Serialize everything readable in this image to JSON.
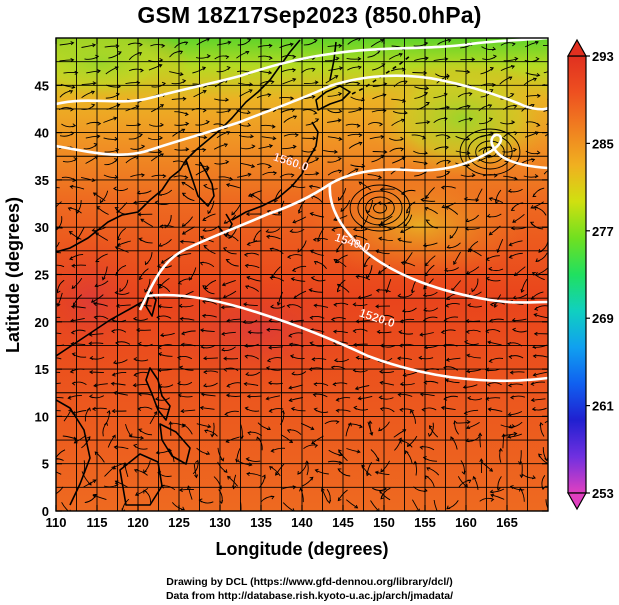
{
  "title": "GSM 18Z17Sep2023 (850.0hPa)",
  "x_axis": {
    "label": "Longitude (degrees)",
    "min": 110,
    "max": 170,
    "ticks": [
      110,
      115,
      120,
      125,
      130,
      135,
      140,
      145,
      150,
      155,
      160,
      165
    ]
  },
  "y_axis": {
    "label": "Latitude  (degrees)",
    "min": 0,
    "max": 50,
    "ticks": [
      0,
      5,
      10,
      15,
      20,
      25,
      30,
      35,
      40,
      45
    ]
  },
  "colorbar": {
    "ticks": [
      253,
      261,
      269,
      277,
      285,
      293
    ],
    "min": 253,
    "max": 293,
    "colors": [
      "#e040c0",
      "#7030e0",
      "#2020d0",
      "#1060f0",
      "#10a0f0",
      "#10d0c0",
      "#20e060",
      "#70e020",
      "#d0e010",
      "#f0b020",
      "#f08020",
      "#ee5020",
      "#e03020"
    ]
  },
  "contours": [
    {
      "label": "1560.0",
      "lon": 138.5,
      "lat": 36.5
    },
    {
      "label": "1540.0",
      "lon": 146.0,
      "lat": 28.0
    },
    {
      "label": "1520.0",
      "lon": 149.0,
      "lat": 20.0
    }
  ],
  "footer": {
    "line1": "Drawing by DCL (https://www.gfd-dennou.org/library/dcl/)",
    "line2": "Data from http://database.rish.kyoto-u.ac.jp/arch/jmadata/"
  },
  "colors": {
    "warm": "#e84a1c",
    "hot": "#e03020",
    "mid": "#f29a22",
    "cool": "#8cd626",
    "contour": "#ffffff"
  }
}
